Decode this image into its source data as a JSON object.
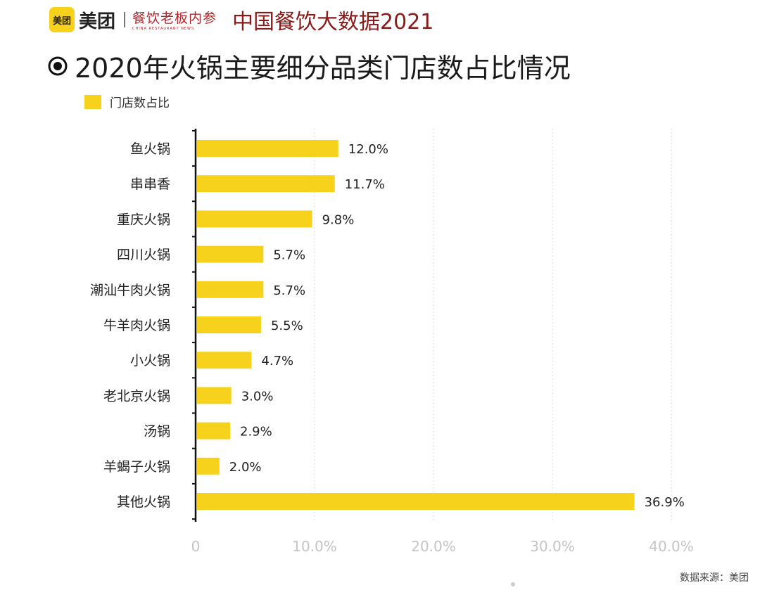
{
  "header": {
    "logo_text": "美团",
    "brand_name": "美团",
    "sub_brand": "餐饮老板内参",
    "sub_brand_tagline": "CHINA RESTAURANT NEWS",
    "report_title": "中国餐饮大数据2021"
  },
  "chart_data": {
    "type": "bar",
    "orientation": "horizontal",
    "title": "2020年火锅主要细分品类门店数占比情况",
    "categories": [
      "鱼火锅",
      "串串香",
      "重庆火锅",
      "四川火锅",
      "潮汕牛肉火锅",
      "牛羊肉火锅",
      "小火锅",
      "老北京火锅",
      "汤锅",
      "羊蝎子火锅",
      "其他火锅"
    ],
    "series": [
      {
        "name": "门店数占比",
        "values": [
          12.0,
          11.7,
          9.8,
          5.7,
          5.7,
          5.5,
          4.7,
          3.0,
          2.9,
          2.0,
          36.9
        ]
      }
    ],
    "value_labels": [
      "12.0%",
      "11.7%",
      "9.8%",
      "5.7%",
      "5.7%",
      "5.5%",
      "4.7%",
      "3.0%",
      "2.9%",
      "2.0%",
      "36.9%"
    ],
    "x_ticks": [
      0,
      10,
      20,
      30,
      40
    ],
    "x_tick_labels": [
      "0",
      "10.0%",
      "20.0%",
      "30.0%",
      "40.0%"
    ],
    "xlim": [
      0,
      40
    ],
    "grid": true,
    "legend_position": "top-left",
    "bar_color": "#f7d21c"
  },
  "footer": {
    "source": "数据来源：美团"
  }
}
